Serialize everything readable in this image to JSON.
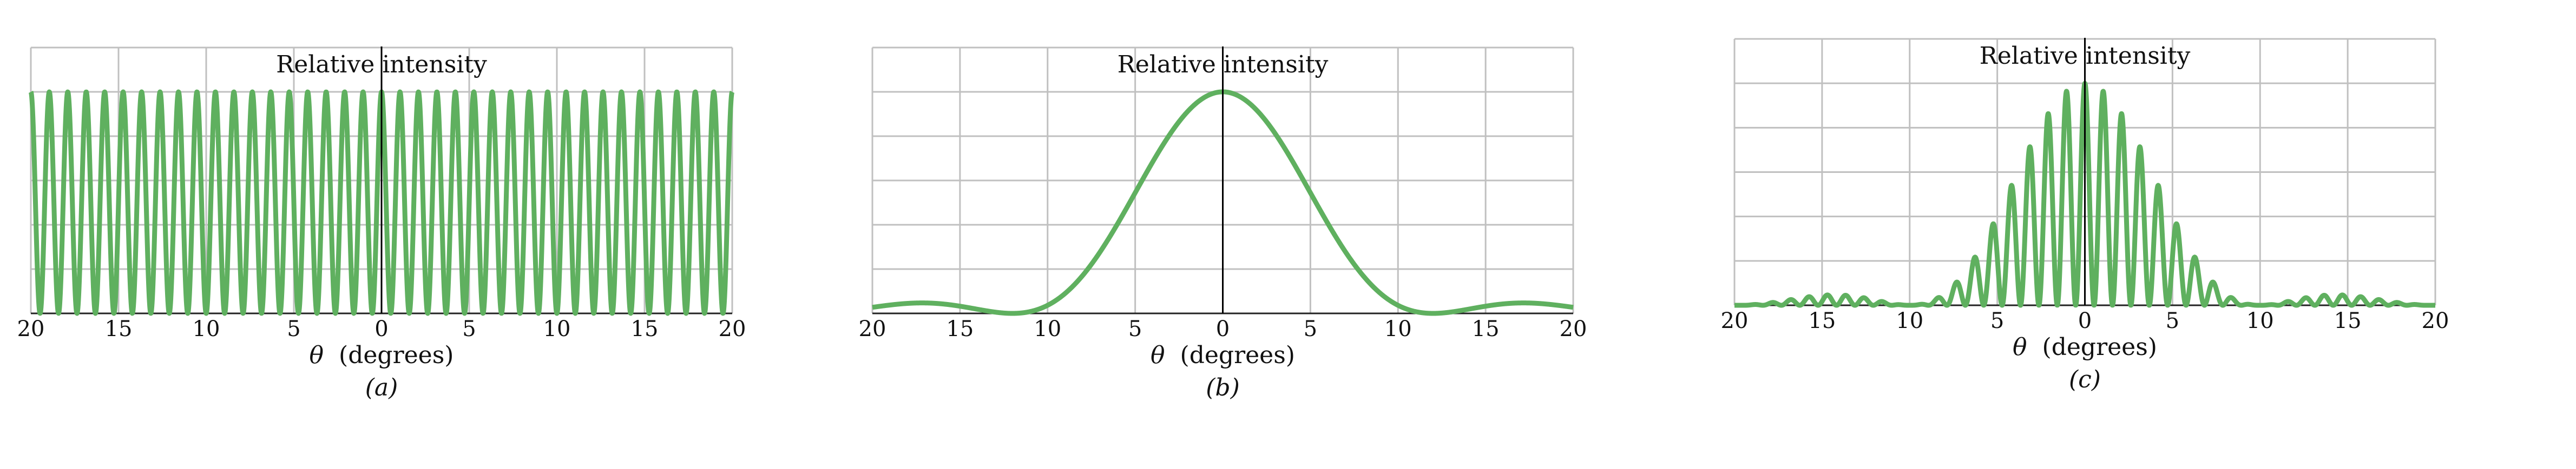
{
  "chart_data": [
    {
      "type": "line",
      "panel_label": "(a)",
      "title": "Relative intensity",
      "xlabel_symbol": "θ",
      "xlabel_unit": "(degrees)",
      "x_tick_labels": [
        "20",
        "15",
        "10",
        "5",
        "0",
        "5",
        "10",
        "15",
        "20"
      ],
      "xlim": [
        -20,
        20
      ],
      "ylim": [
        0,
        1.2
      ],
      "grid": true,
      "color": "#5fb05f",
      "description_of_series": "cos^2 interference fringes",
      "model": "a",
      "params": {
        "fringes_across_range": 38
      }
    },
    {
      "type": "line",
      "panel_label": "(b)",
      "title": "Relative intensity",
      "xlabel_symbol": "θ",
      "xlabel_unit": "(degrees)",
      "x_tick_labels": [
        "20",
        "15",
        "10",
        "5",
        "0",
        "5",
        "10",
        "15",
        "20"
      ],
      "xlim": [
        -20,
        20
      ],
      "ylim": [
        0,
        1.2
      ],
      "grid": true,
      "color": "#5fb05f",
      "model": "b",
      "params": {
        "first_min_deg": 12
      }
    },
    {
      "type": "line",
      "panel_label": "(c)",
      "title": "Relative intensity",
      "xlabel_symbol": "θ",
      "xlabel_unit": "(degrees)",
      "x_tick_labels": [
        "20",
        "15",
        "10",
        "5",
        "0",
        "5",
        "10",
        "15",
        "20"
      ],
      "xlim": [
        -20,
        20
      ],
      "ylim": [
        0,
        1.2
      ],
      "grid": true,
      "color": "#5fb05f",
      "model": "c",
      "params": {
        "fringe_period_deg": 1.05,
        "first_min_deg": 10
      }
    }
  ]
}
